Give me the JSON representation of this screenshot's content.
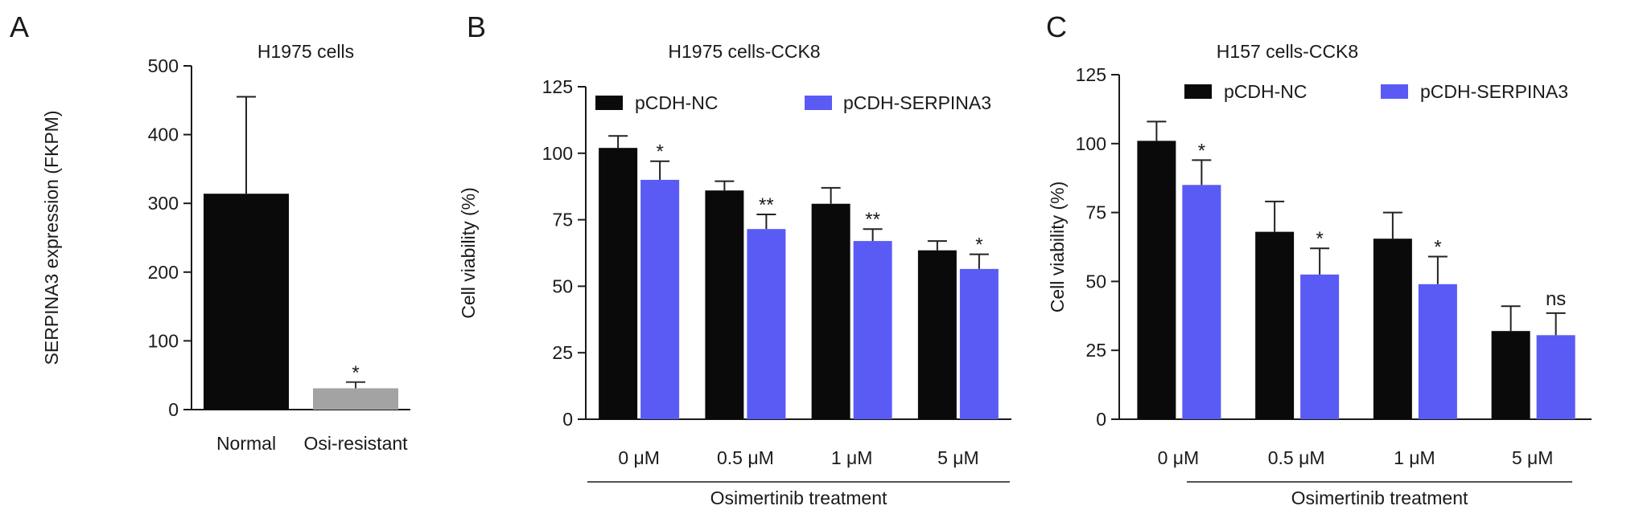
{
  "colors": {
    "black": "#0a0a0a",
    "blue": "#5a5af5",
    "gray": "#a3a3a3",
    "axis": "#1a1a1a"
  },
  "chart_data": [
    {
      "panel": "A",
      "type": "bar",
      "title": "H1975 cells",
      "ylabel": "SERPINA3 expression (FKPM)",
      "xlabel": "",
      "ylim": [
        0,
        500
      ],
      "yticks": [
        0,
        100,
        200,
        300,
        400,
        500
      ],
      "categories": [
        "Normal",
        "Osi-resistant"
      ],
      "series": [
        {
          "values": [
            314,
            31
          ],
          "errors": [
            141,
            9
          ],
          "colors": [
            "#0a0a0a",
            "#a3a3a3"
          ]
        }
      ],
      "annotations": [
        "",
        "*"
      ],
      "grid": false,
      "legend": null
    },
    {
      "panel": "B",
      "type": "bar",
      "title": "H1975 cells-CCK8",
      "ylabel": "Cell viability (%)",
      "xlabel": "Osimertinib treatment",
      "ylim": [
        0,
        125
      ],
      "yticks": [
        0,
        25,
        50,
        75,
        100,
        125
      ],
      "categories": [
        "0 μM",
        "0.5 μM",
        "1 μM",
        "5 μM"
      ],
      "series": [
        {
          "name": "pCDH-NC",
          "color": "#0a0a0a",
          "values": [
            102,
            86,
            81,
            63.5
          ],
          "errors": [
            4.5,
            3.5,
            6,
            3.5
          ],
          "annotations": [
            "",
            "",
            "",
            ""
          ]
        },
        {
          "name": "pCDH-SERPINA3",
          "color": "#5a5af5",
          "values": [
            90,
            71.5,
            67,
            56.5
          ],
          "errors": [
            7,
            5.5,
            4.5,
            5.5
          ],
          "annotations": [
            "*",
            "**",
            "**",
            "*"
          ]
        }
      ],
      "grid": false,
      "legend": "top"
    },
    {
      "panel": "C",
      "type": "bar",
      "title": "H157 cells-CCK8",
      "ylabel": "Cell viability (%)",
      "xlabel": "Osimertinib treatment",
      "ylim": [
        0,
        125
      ],
      "yticks": [
        0,
        25,
        50,
        75,
        100,
        125
      ],
      "categories": [
        "0 μM",
        "0.5 μM",
        "1 μM",
        "5 μM"
      ],
      "series": [
        {
          "name": "pCDH-NC",
          "color": "#0a0a0a",
          "values": [
            101,
            68,
            65.5,
            32
          ],
          "errors": [
            7,
            11,
            9.5,
            9
          ],
          "annotations": [
            "",
            "",
            "",
            ""
          ]
        },
        {
          "name": "pCDH-SERPINA3",
          "color": "#5a5af5",
          "values": [
            85,
            52.5,
            49,
            30.5
          ],
          "errors": [
            9,
            9.5,
            10,
            8
          ],
          "annotations": [
            "*",
            "*",
            "*",
            "ns"
          ]
        }
      ],
      "grid": false,
      "legend": "top"
    }
  ]
}
